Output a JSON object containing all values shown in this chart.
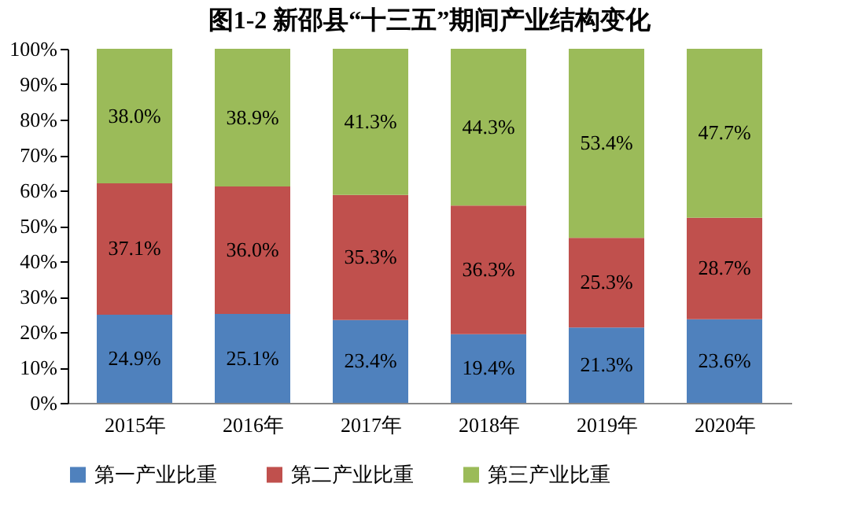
{
  "chart_data": {
    "type": "bar",
    "stacked": true,
    "title": "图1-2  新邵县“十三五”期间产业结构变化",
    "categories": [
      "2015年",
      "2016年",
      "2017年",
      "2018年",
      "2019年",
      "2020年"
    ],
    "series": [
      {
        "name": "第一产业比重",
        "color": "#4f81bd",
        "values": [
          24.9,
          25.1,
          23.4,
          19.4,
          21.3,
          23.6
        ],
        "value_labels": [
          "24.9%",
          "25.1%",
          "23.4%",
          "19.4%",
          "21.3%",
          "23.6%"
        ]
      },
      {
        "name": "第二产业比重",
        "color": "#c0504d",
        "values": [
          37.1,
          36.0,
          35.3,
          36.3,
          25.3,
          28.7
        ],
        "value_labels": [
          "37.1%",
          "36.0%",
          "35.3%",
          "36.3%",
          "25.3%",
          "28.7%"
        ]
      },
      {
        "name": "第三产业比重",
        "color": "#9bbb59",
        "values": [
          38.0,
          38.9,
          41.3,
          44.3,
          53.4,
          47.7
        ],
        "value_labels": [
          "38.0%",
          "38.9%",
          "41.3%",
          "44.3%",
          "53.4%",
          "47.7%"
        ]
      }
    ],
    "ylim": [
      0,
      100
    ],
    "yticks": [
      {
        "value": 0,
        "label": "0%"
      },
      {
        "value": 10,
        "label": "10%"
      },
      {
        "value": 20,
        "label": "20%"
      },
      {
        "value": 30,
        "label": "30%"
      },
      {
        "value": 40,
        "label": "40%"
      },
      {
        "value": 50,
        "label": "50%"
      },
      {
        "value": 60,
        "label": "60%"
      },
      {
        "value": 70,
        "label": "70%"
      },
      {
        "value": 80,
        "label": "80%"
      },
      {
        "value": 90,
        "label": "90%"
      },
      {
        "value": 100,
        "label": "100%"
      }
    ],
    "grid": false,
    "legend": "bottom"
  }
}
